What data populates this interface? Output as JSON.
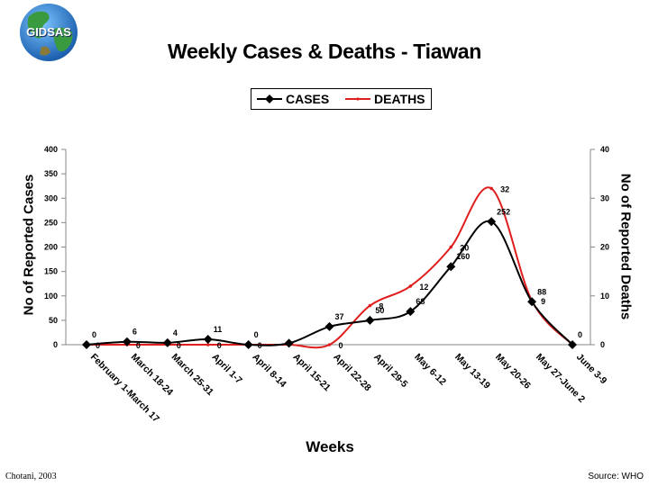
{
  "logo": {
    "text": "GIDSAS"
  },
  "footer": {
    "author": "Chotani, 2003",
    "source": "Source: WHO"
  },
  "colors": {
    "cases": "#000000",
    "deaths": "#e01e1e",
    "logo_ocean": "#2a7fd4",
    "logo_land": "#2e8b3a"
  },
  "chart_data": {
    "type": "line",
    "title": "Weekly Cases & Deaths - Tiawan",
    "xlabel": "Weeks",
    "ylabel_left": "No of Reported Cases",
    "ylabel_right": "No of Reported Deaths",
    "ylim_left": [
      0,
      400
    ],
    "ylim_right": [
      0,
      40
    ],
    "yticks_left": [
      "0",
      "50",
      "100",
      "150",
      "200",
      "250",
      "300",
      "350",
      "400"
    ],
    "yticks_right": [
      "0",
      "10",
      "20",
      "30",
      "40"
    ],
    "legend_position": "top-center",
    "categories": [
      "February 1-March 17",
      "March 18-24",
      "March 25-31",
      "April 1-7",
      "April 8-14",
      "April 15-21",
      "April 22-28",
      "April 29-5",
      "May 6-12",
      "May 13-19",
      "May 20-26",
      "May 27-June 2",
      "June 3-9"
    ],
    "series": [
      {
        "name": "CASES",
        "axis": "left",
        "marker": "diamond",
        "values": [
          0,
          6,
          4,
          11,
          0,
          3,
          37,
          50,
          68,
          160,
          252,
          88,
          0
        ],
        "labels": [
          "0",
          "6",
          "4",
          "11",
          "0",
          "",
          "37",
          "50",
          "68",
          "160",
          "252",
          "88",
          "0"
        ]
      },
      {
        "name": "DEATHS",
        "axis": "right",
        "marker": "dot",
        "values": [
          0,
          0,
          0,
          0,
          0,
          0,
          0,
          8,
          12,
          20,
          32,
          9,
          0
        ],
        "labels": [
          "0",
          "0",
          "0",
          "0",
          "0",
          "",
          "0",
          "8",
          "12",
          "20",
          "32",
          "9",
          ""
        ]
      }
    ]
  }
}
